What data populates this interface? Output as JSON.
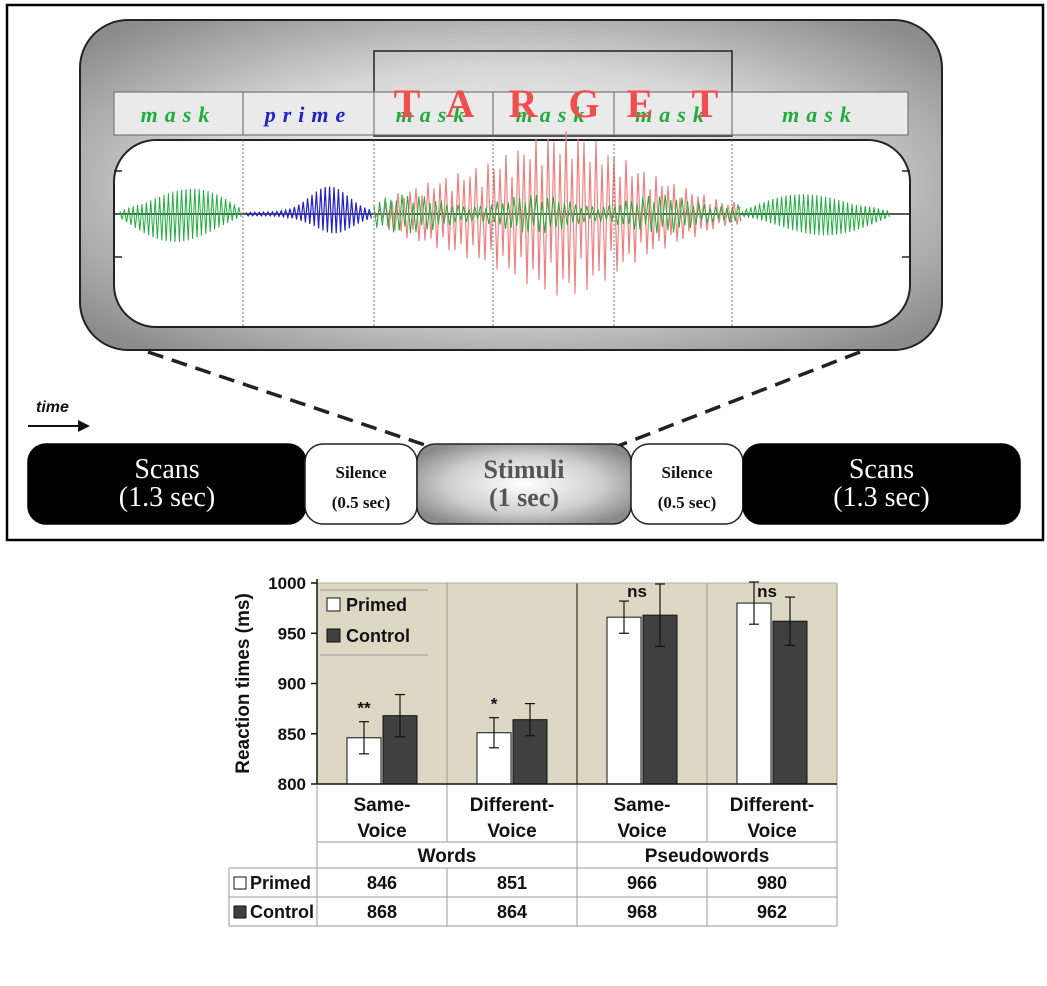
{
  "diagram": {
    "segments": [
      {
        "label": "mask",
        "kind": "mask"
      },
      {
        "label": "prime",
        "kind": "prime"
      },
      {
        "label": "mask",
        "kind": "mask"
      },
      {
        "label": "mask",
        "kind": "mask"
      },
      {
        "label": "mask",
        "kind": "mask"
      },
      {
        "label": "mask",
        "kind": "mask"
      }
    ],
    "target_letters": [
      "T",
      "A",
      "R",
      "G",
      "E",
      "T"
    ],
    "time_label": "time",
    "blocks": [
      {
        "line1": "Scans",
        "line2": "(1.3 sec)",
        "style": "dark"
      },
      {
        "line1": "Silence",
        "line2": "(0.5 sec)",
        "style": "light"
      },
      {
        "line1": "Stimuli",
        "line2": "(1 sec)",
        "style": "gradient"
      },
      {
        "line1": "Silence",
        "line2": "(0.5 sec)",
        "style": "light"
      },
      {
        "line1": "Scans",
        "line2": "(1.3 sec)",
        "style": "dark"
      }
    ],
    "colors": {
      "mask": "#1fae3c",
      "prime": "#2222c8",
      "target": "#ef4f4f"
    }
  },
  "chart_data": {
    "type": "bar",
    "ylabel": "Reaction times (ms)",
    "ylim": [
      800,
      1000
    ],
    "yticks": [
      800,
      850,
      900,
      950,
      1000
    ],
    "groups": [
      {
        "label": "Words",
        "categories": [
          "Same-\nVoice",
          "Different-\nVoice"
        ]
      },
      {
        "label": "Pseudowords",
        "categories": [
          "Same-\nVoice",
          "Different-\nVoice"
        ]
      }
    ],
    "categories": [
      {
        "line1": "Same-",
        "line2": "Voice"
      },
      {
        "line1": "Different-",
        "line2": "Voice"
      },
      {
        "line1": "Same-",
        "line2": "Voice"
      },
      {
        "line1": "Different-",
        "line2": "Voice"
      }
    ],
    "series": [
      {
        "name": "Primed",
        "color": "#ffffff",
        "values": [
          846,
          851,
          966,
          980
        ],
        "error": [
          16,
          15,
          16,
          21
        ]
      },
      {
        "name": "Control",
        "color": "#404040",
        "values": [
          868,
          864,
          968,
          962
        ],
        "error": [
          21,
          16,
          31,
          24
        ]
      }
    ],
    "significance": [
      "**",
      "*",
      "ns",
      "ns"
    ],
    "legend_placement": "top-left",
    "table": {
      "rows": [
        {
          "name": "Primed",
          "values": [
            "846",
            "851",
            "966",
            "980"
          ]
        },
        {
          "name": "Control",
          "values": [
            "868",
            "864",
            "968",
            "962"
          ]
        }
      ]
    },
    "background": "#ddd8c4"
  }
}
